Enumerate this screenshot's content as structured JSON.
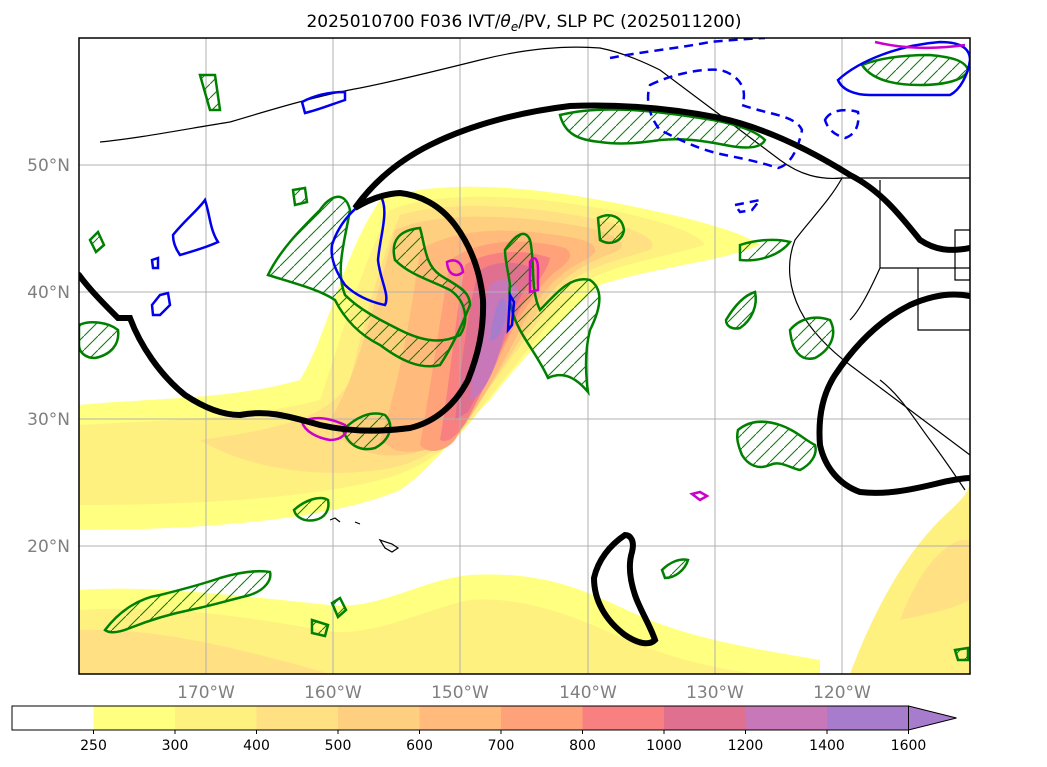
{
  "title": "2025010700 F036 IVT/θe/PV, SLP PC (2025011200)",
  "title_parts": {
    "pre": "2025010700 F036 IVT/",
    "theta": "θ",
    "sub": "e",
    "post": "/PV, SLP PC (2025011200)"
  },
  "lat_labels": [
    "50°N",
    "40°N",
    "30°N",
    "20°N"
  ],
  "lon_labels": [
    "170°W",
    "160°W",
    "150°W",
    "140°W",
    "130°W",
    "120°W"
  ],
  "colorbar": {
    "ticks": [
      "250",
      "300",
      "400",
      "500",
      "600",
      "700",
      "800",
      "1000",
      "1200",
      "1400",
      "1600"
    ],
    "colors": [
      "#ffffff",
      "#ffff80",
      "#fff180",
      "#ffe082",
      "#ffcf80",
      "#ffba7c",
      "#ffa27a",
      "#f88080",
      "#e07090",
      "#c878b8",
      "#a87ccc"
    ],
    "extend": "max"
  },
  "colors": {
    "slp_contour": "#000000",
    "pv_positive": "#0000ee",
    "pv_high": "#cc00cc",
    "theta_e": "#008000",
    "coast": "#000000",
    "grid": "#b0b0b0"
  }
}
